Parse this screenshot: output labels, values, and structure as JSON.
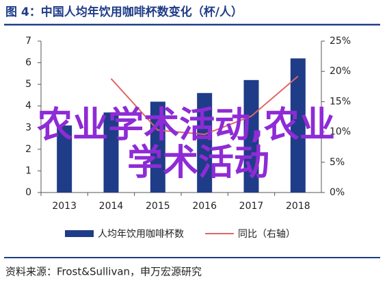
{
  "chart_data": {
    "type": "bar-line",
    "title": "图 4：中国人均年饮用咖啡杯数变化（杯/人）",
    "categories": [
      "2013",
      "2014",
      "2015",
      "2016",
      "2017",
      "2018"
    ],
    "series": [
      {
        "name": "人均年饮用咖啡杯数",
        "type": "bar",
        "color": "#1f3c88",
        "values": [
          3.1,
          3.7,
          4.2,
          4.6,
          5.2,
          6.2
        ]
      },
      {
        "name": "同比（右轴）",
        "type": "line",
        "axis": "y2",
        "color": "#e06666",
        "values": [
          null,
          18.8,
          10.3,
          9.6,
          12.6,
          19.2
        ]
      }
    ],
    "ylim": [
      0,
      7
    ],
    "yticks": [
      0,
      1,
      2,
      3,
      4,
      5,
      6,
      7
    ],
    "y2lim": [
      0,
      25
    ],
    "y2ticks": [
      {
        "value": 0,
        "label": "0%"
      },
      {
        "value": 5,
        "label": "5%"
      },
      {
        "value": 10,
        "label": "10%"
      },
      {
        "value": 15,
        "label": "15%"
      },
      {
        "value": 20,
        "label": "20%"
      },
      {
        "value": 25,
        "label": "25%"
      }
    ],
    "source": "资料来源：Frost&Sullivan，申万宏源研究",
    "watermark": [
      "农业学术活动,农业",
      "学术活动"
    ]
  }
}
